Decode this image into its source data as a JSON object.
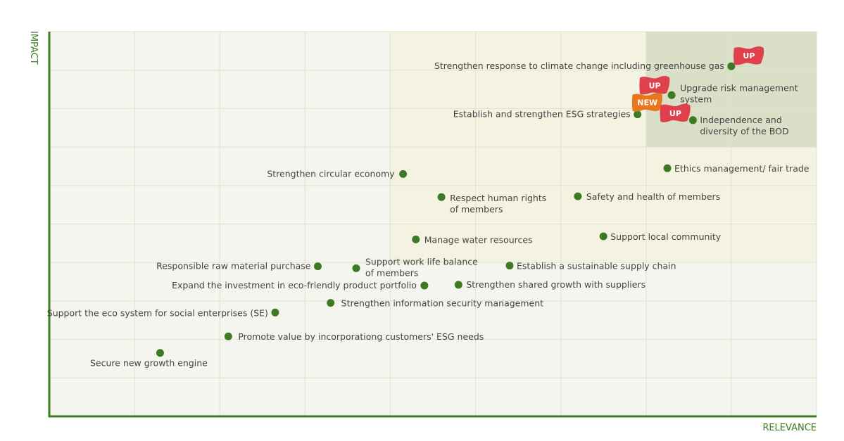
{
  "chart_data": {
    "type": "scatter",
    "xlabel": "RELEVANCE",
    "ylabel": "IMPACT",
    "xlim": [
      0,
      9
    ],
    "ylim": [
      0,
      10
    ],
    "grid": true,
    "colors": {
      "point": "#3d7a24",
      "axis": "#3d7a24",
      "grid": "#dde3cc",
      "badge_up": "#e0404c",
      "badge_new": "#e8761c",
      "zone_low": "#f4f5ee",
      "zone_mid": "#f4f3e2",
      "zone_high": "#d9e0c7"
    },
    "points": [
      {
        "label": "Strengthen response to climate change including greenhouse gas",
        "x": 8.0,
        "y": 9.1,
        "badge": "UP"
      },
      {
        "label": "Upgrade risk management system",
        "x": 7.3,
        "y": 8.35,
        "badge": "UP"
      },
      {
        "label": "Establish and strengthen ESG strategies",
        "x": 6.9,
        "y": 7.85,
        "badge": "NEW"
      },
      {
        "label": "Independence and diversity of the BOD",
        "x": 7.55,
        "y": 7.7,
        "badge": "UP"
      },
      {
        "label": "Ethics management/ fair trade",
        "x": 7.25,
        "y": 6.45
      },
      {
        "label": "Strengthen circular economy",
        "x": 4.15,
        "y": 6.3
      },
      {
        "label": "Respect human rights of members",
        "x": 4.6,
        "y": 5.7
      },
      {
        "label": "Safety and health of members",
        "x": 6.2,
        "y": 5.72
      },
      {
        "label": "Manage water resources",
        "x": 4.3,
        "y": 4.6
      },
      {
        "label": "Support local community",
        "x": 6.5,
        "y": 4.68
      },
      {
        "label": "Responsible raw material purchase",
        "x": 3.15,
        "y": 3.9
      },
      {
        "label": "Support work life balance of members",
        "x": 3.6,
        "y": 3.85
      },
      {
        "label": "Establish a sustainable supply chain",
        "x": 5.4,
        "y": 3.92
      },
      {
        "label": "Expand the investment in eco-friendly product portfolio",
        "x": 4.4,
        "y": 3.4
      },
      {
        "label": "Strengthen shared growth with suppliers",
        "x": 4.8,
        "y": 3.42
      },
      {
        "label": "Strengthen information security management",
        "x": 3.3,
        "y": 2.95
      },
      {
        "label": "Support the eco system for social enterprises (SE)",
        "x": 2.65,
        "y": 2.7
      },
      {
        "label": "Promote value by incorporationg customers' ESG needs",
        "x": 2.1,
        "y": 2.08
      },
      {
        "label": "Secure new growth engine",
        "x": 1.3,
        "y": 1.65
      }
    ]
  }
}
